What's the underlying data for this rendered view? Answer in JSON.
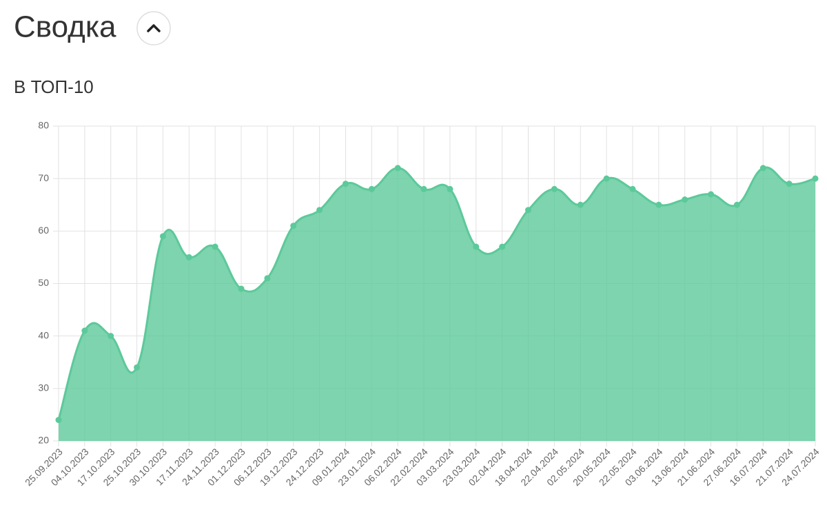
{
  "header": {
    "title": "Сводка"
  },
  "chart_data": {
    "type": "area",
    "title": "В ТОП-10",
    "categories": [
      "25.09.2023",
      "04.10.2023",
      "17.10.2023",
      "25.10.2023",
      "30.10.2023",
      "17.11.2023",
      "24.11.2023",
      "01.12.2023",
      "06.12.2023",
      "19.12.2023",
      "24.12.2023",
      "09.01.2024",
      "23.01.2024",
      "06.02.2024",
      "22.02.2024",
      "03.03.2024",
      "23.03.2024",
      "02.04.2024",
      "18.04.2024",
      "22.04.2024",
      "02.05.2024",
      "20.05.2024",
      "22.05.2024",
      "03.06.2024",
      "13.06.2024",
      "21.06.2024",
      "27.06.2024",
      "16.07.2024",
      "21.07.2024",
      "24.07.2024"
    ],
    "values": [
      24,
      41,
      40,
      34,
      59,
      55,
      57,
      49,
      51,
      61,
      64,
      69,
      68,
      72,
      68,
      68,
      57,
      57,
      64,
      68,
      65,
      70,
      68,
      65,
      66,
      67,
      65,
      72,
      69,
      70
    ],
    "color": "#5cc99a",
    "ylim": [
      20,
      80
    ],
    "yticks": [
      20,
      30,
      40,
      50,
      60,
      70,
      80
    ],
    "grid": true
  }
}
